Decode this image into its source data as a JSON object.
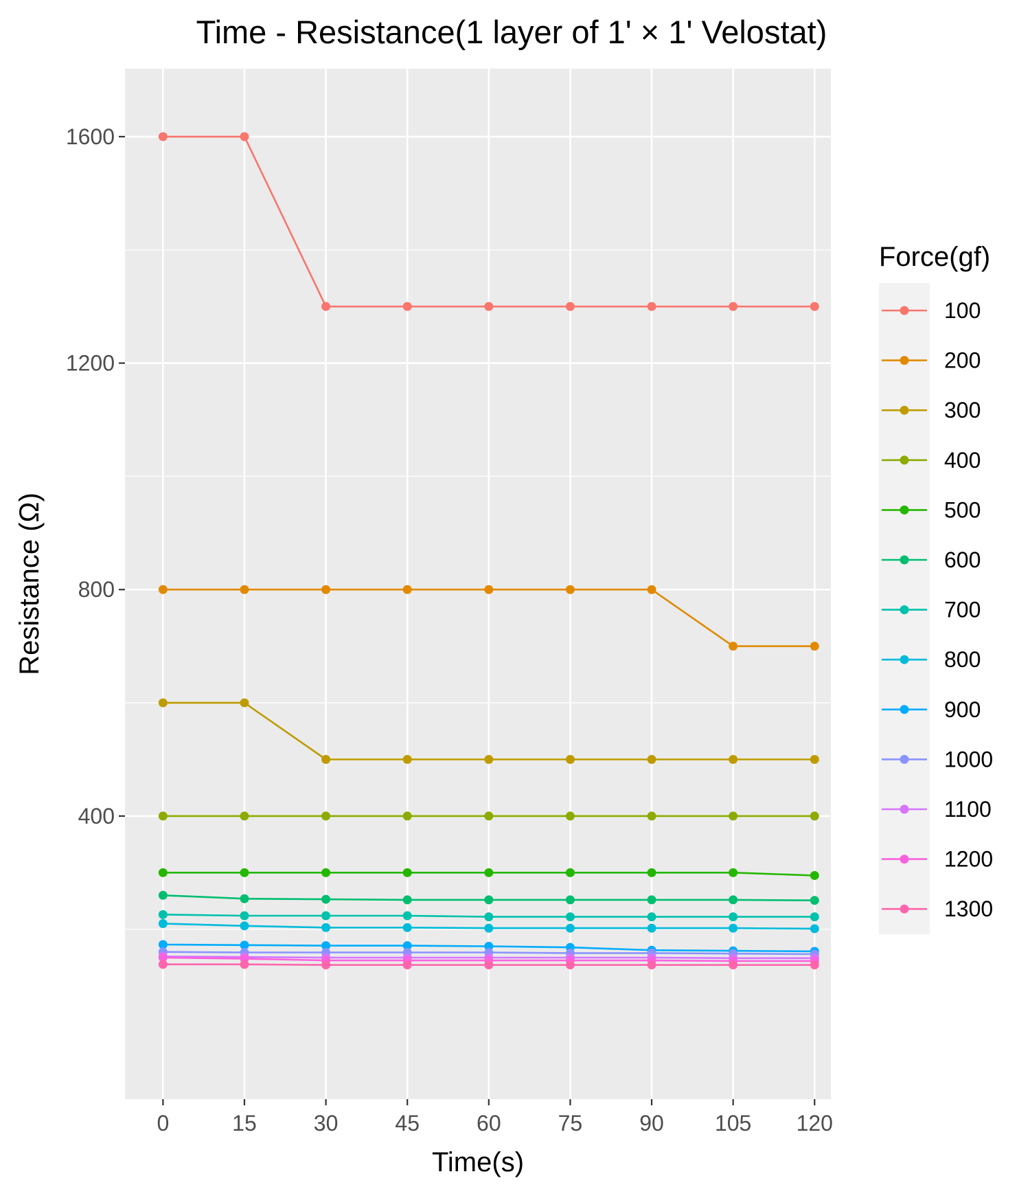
{
  "chart_data": {
    "type": "line",
    "title": "Time - Resistance(1 layer of 1' × 1' Velostat)",
    "xlabel": "Time(s)",
    "ylabel": "Resistance (Ω)",
    "xlim": [
      -7,
      123
    ],
    "ylim": [
      -100,
      1720
    ],
    "x": [
      0,
      15,
      30,
      45,
      60,
      75,
      90,
      105,
      120
    ],
    "x_ticks": [
      "0",
      "15",
      "30",
      "45",
      "60",
      "75",
      "90",
      "105",
      "120"
    ],
    "y_ticks": [
      "400",
      "800",
      "1200",
      "1600"
    ],
    "y_tick_values": [
      400,
      800,
      1200,
      1600
    ],
    "y_minor_values": [
      200,
      600,
      1000,
      1400
    ],
    "grid": true,
    "legend": {
      "title": "Force(gf)",
      "position": "right"
    },
    "background": "#ebebeb",
    "grid_color": "#ffffff",
    "series": [
      {
        "name": "100",
        "color": "#f8766d",
        "values": [
          1600,
          1600,
          1300,
          1300,
          1300,
          1300,
          1300,
          1300,
          1300
        ]
      },
      {
        "name": "200",
        "color": "#e18a00",
        "values": [
          800,
          800,
          800,
          800,
          800,
          800,
          800,
          700,
          700
        ]
      },
      {
        "name": "300",
        "color": "#be9c00",
        "values": [
          600,
          600,
          500,
          500,
          500,
          500,
          500,
          500,
          500
        ]
      },
      {
        "name": "400",
        "color": "#8cab00",
        "values": [
          400,
          400,
          400,
          400,
          400,
          400,
          400,
          400,
          400
        ]
      },
      {
        "name": "500",
        "color": "#24b700",
        "values": [
          300,
          300,
          300,
          300,
          300,
          300,
          300,
          300,
          295
        ]
      },
      {
        "name": "600",
        "color": "#00be70",
        "values": [
          260,
          254,
          253,
          252,
          252,
          252,
          252,
          252,
          251
        ]
      },
      {
        "name": "700",
        "color": "#00c1ab",
        "values": [
          226,
          224,
          224,
          224,
          222,
          222,
          222,
          222,
          222
        ]
      },
      {
        "name": "800",
        "color": "#00bbda",
        "values": [
          210,
          206,
          203,
          203,
          202,
          202,
          202,
          202,
          201
        ]
      },
      {
        "name": "900",
        "color": "#00acfc",
        "values": [
          173,
          172,
          171,
          171,
          170,
          168,
          163,
          162,
          161
        ]
      },
      {
        "name": "1000",
        "color": "#8b93ff",
        "values": [
          160,
          159,
          159,
          159,
          159,
          158,
          158,
          157,
          156
        ]
      },
      {
        "name": "1100",
        "color": "#d575fe",
        "values": [
          152,
          151,
          150,
          150,
          150,
          150,
          150,
          149,
          149
        ]
      },
      {
        "name": "1200",
        "color": "#f962dd",
        "values": [
          150,
          148,
          145,
          145,
          145,
          145,
          145,
          144,
          144
        ]
      },
      {
        "name": "1300",
        "color": "#ff65ac",
        "values": [
          138,
          138,
          137,
          137,
          137,
          137,
          137,
          137,
          137
        ]
      }
    ]
  }
}
